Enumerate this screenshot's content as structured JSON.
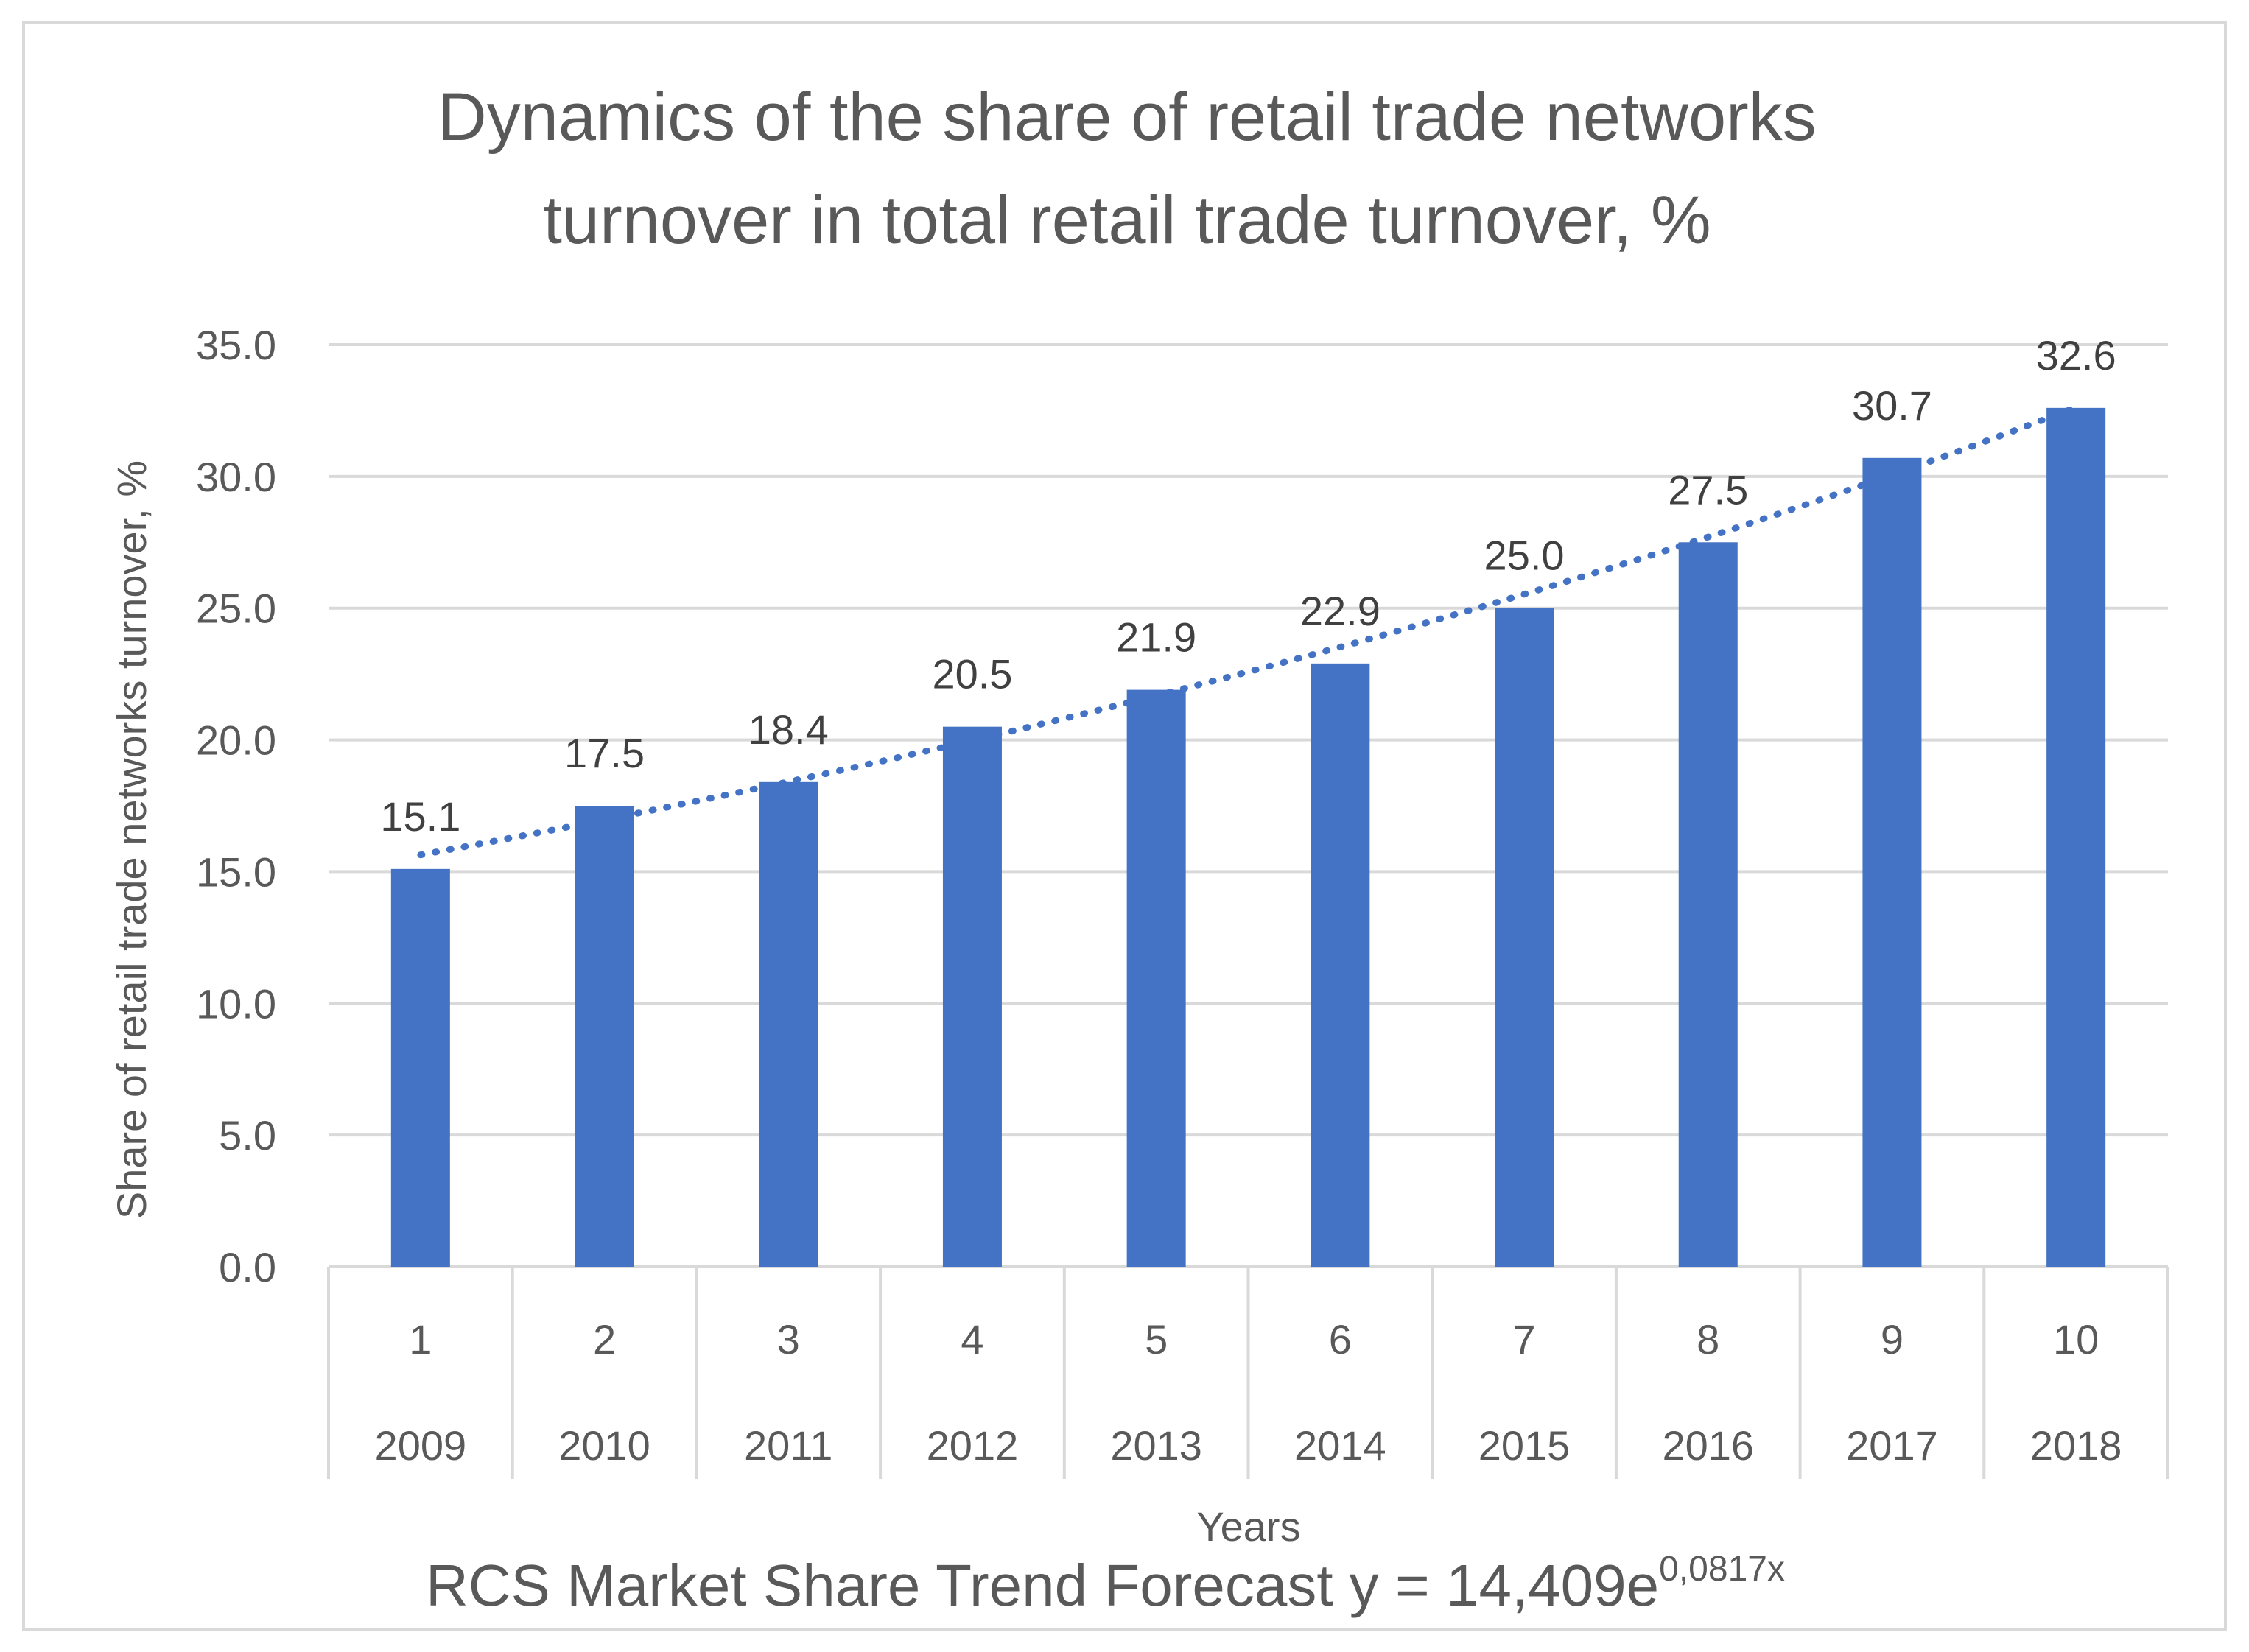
{
  "chart_data": {
    "type": "bar",
    "title_line1": "Dynamics of the share of  retail trade networks",
    "title_line2": "turnover  in total retail trade turnover, %",
    "ylabel": "Share of  retail trade networks turnover, %",
    "xlabel": "Years",
    "ylim": [
      0,
      35
    ],
    "yticks": [
      "0.0",
      "5.0",
      "10.0",
      "15.0",
      "20.0",
      "25.0",
      "30.0",
      "35.0"
    ],
    "grid": true,
    "categories": [
      "1",
      "2",
      "3",
      "4",
      "5",
      "6",
      "7",
      "8",
      "9",
      "10"
    ],
    "years": [
      "2009",
      "2010",
      "2011",
      "2012",
      "2013",
      "2014",
      "2015",
      "2016",
      "2017",
      "2018"
    ],
    "values": [
      15.1,
      17.5,
      18.4,
      20.5,
      21.9,
      22.9,
      25.0,
      27.5,
      30.7,
      32.6
    ],
    "value_labels": [
      "15.1",
      "17.5",
      "18.4",
      "20.5",
      "21.9",
      "22.9",
      "25.0",
      "27.5",
      "30.7",
      "32.6"
    ],
    "bar_color": "#4472c4",
    "trendline": {
      "type": "exponential",
      "a": 14.409,
      "b": 0.0817,
      "style": "dotted",
      "color": "#4472c4"
    },
    "footer_text": "RCS Market Share Trend Forecast  y = 14,409e",
    "footer_exponent": "0,0817x"
  }
}
